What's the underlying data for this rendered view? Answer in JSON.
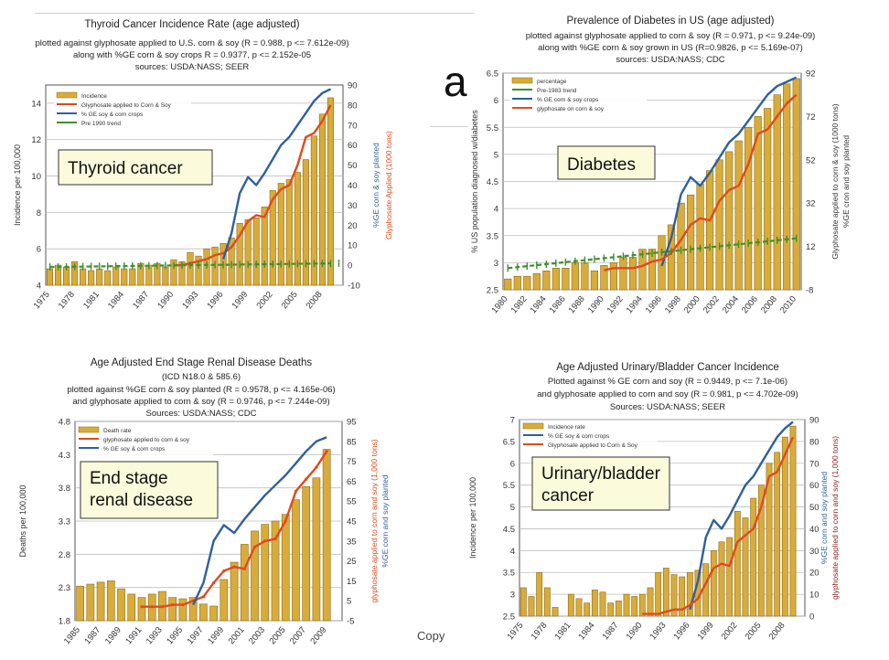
{
  "slide": {
    "letter": "a",
    "copy_text": "Copy",
    "colors": {
      "bar": "#d9ac3a",
      "bar_stroke": "#8a6a14",
      "glyphosate": "#e04a1c",
      "ge": "#2f5f9e",
      "trend": "#3f8f2f",
      "label_bg": "#fbfbdb",
      "label_border": "#333333"
    }
  },
  "chart_data": [
    {
      "id": "thyroid",
      "type": "bar",
      "title": "Thyroid Cancer Incidence Rate (age adjusted)",
      "subtitles": [
        "plotted against glyphosate applied to U.S. corn & soy (R = 0.988, p <= 7.612e-09)",
        "along with %GE corn & soy crops R = 0.9377, p <= 2.152e-05",
        "sources: USDA:NASS; SEER"
      ],
      "overlay_label": "Thyroid cancer",
      "ylabel": "Incidence per 100,000",
      "y2label_lines": [
        "%GE corn & soy planted",
        "Glyphosate Applied (1000 tons)"
      ],
      "y2colors": [
        "#2f5f9e",
        "#e04a1c"
      ],
      "ylim": [
        4,
        15
      ],
      "yticks": [
        "4",
        "6",
        "8",
        "10",
        "12",
        "14"
      ],
      "y2lim": [
        -10,
        90
      ],
      "y2ticks": [
        "-10",
        "0",
        "10",
        "20",
        "30",
        "40",
        "50",
        "60",
        "70",
        "80",
        "90"
      ],
      "xlim": [
        1975,
        2010
      ],
      "xticks": [
        "1975",
        "1978",
        "1981",
        "1984",
        "1987",
        "1990",
        "1993",
        "1996",
        "1999",
        "2002",
        "2005",
        "2008"
      ],
      "legend": [
        "Incidence",
        "Glyphosate applied to Corn & Soy",
        "% GE soy & corn crops",
        "Pre 1990 trend"
      ],
      "bars": {
        "x": [
          1975,
          1976,
          1977,
          1978,
          1979,
          1980,
          1981,
          1982,
          1983,
          1984,
          1985,
          1986,
          1987,
          1988,
          1989,
          1990,
          1991,
          1992,
          1993,
          1994,
          1995,
          1996,
          1997,
          1998,
          1999,
          2000,
          2001,
          2002,
          2003,
          2004,
          2005,
          2006,
          2007,
          2008,
          2009
        ],
        "values": [
          4.9,
          5.1,
          5.0,
          5.3,
          4.9,
          4.8,
          4.9,
          4.8,
          5.0,
          4.9,
          4.9,
          5.2,
          5.1,
          5.2,
          5.0,
          5.4,
          5.3,
          5.8,
          5.6,
          6.0,
          6.1,
          6.3,
          6.6,
          7.4,
          7.6,
          7.7,
          8.3,
          9.2,
          9.6,
          9.8,
          10.2,
          10.9,
          12.2,
          13.4,
          14.3
        ]
      },
      "series": [
        {
          "name": "Glyphosate applied to Corn & Soy",
          "axis": "right",
          "x": [
            1990,
            1991,
            1992,
            1993,
            1994,
            1995,
            1996,
            1997,
            1998,
            1999,
            2000,
            2001,
            2002,
            2003,
            2004,
            2005,
            2006,
            2007,
            2008,
            2009
          ],
          "values": [
            0,
            0,
            1,
            2,
            3,
            5,
            6,
            9,
            15,
            22,
            25,
            24,
            33,
            38,
            40,
            50,
            64,
            66,
            72,
            80
          ]
        },
        {
          "name": "% GE soy & corn crops",
          "axis": "right",
          "x": [
            1996,
            1997,
            1998,
            1999,
            2000,
            2001,
            2002,
            2003,
            2004,
            2005,
            2006,
            2007,
            2008,
            2009
          ],
          "values": [
            3,
            16,
            36,
            44,
            40,
            46,
            53,
            60,
            64,
            70,
            76,
            82,
            86,
            88
          ]
        },
        {
          "name": "Pre 1990 trend",
          "axis": "left",
          "x": [
            1975,
            2009
          ],
          "values": [
            5.0,
            5.2
          ]
        }
      ]
    },
    {
      "id": "diabetes",
      "type": "bar",
      "title": "Prevalence of Diabetes in US (age adjusted)",
      "subtitles": [
        "plotted against glyphosate applied to corn & soy (R = 0.971, p <= 9.24e-09)",
        "along with %GE corn & soy grown in US (R=0.9826, p <= 5.169e-07)",
        "sources: USDA:NASS; CDC"
      ],
      "overlay_label": "Diabetes",
      "ylabel": "% US population diagnosed w/diabetes",
      "y2label_lines": [
        "Glyphosate applied to corn & soy (1000 tons)",
        "%GE cron and soy planted"
      ],
      "y2colors": [
        "#333333",
        "#333333"
      ],
      "ylim": [
        2.5,
        6.5
      ],
      "yticks": [
        "2.5",
        "3",
        "3.5",
        "4",
        "4.5",
        "5",
        "5.5",
        "6",
        "6.5"
      ],
      "y2lim": [
        -8,
        92
      ],
      "y2ticks": [
        "-8",
        "12",
        "32",
        "52",
        "72",
        "92"
      ],
      "xlim": [
        1980,
        2010
      ],
      "xticks": [
        "1980",
        "1982",
        "1984",
        "1986",
        "1988",
        "1990",
        "1992",
        "1994",
        "1996",
        "1998",
        "2000",
        "2002",
        "2004",
        "2006",
        "2008",
        "2010"
      ],
      "legend": [
        "percentage",
        "Pre-1983 trend",
        "% GE corn & soy crops",
        "glyphosate on corn & soy"
      ],
      "bars": {
        "x": [
          1980,
          1981,
          1982,
          1983,
          1984,
          1985,
          1986,
          1987,
          1988,
          1989,
          1990,
          1991,
          1992,
          1993,
          1994,
          1995,
          1996,
          1997,
          1998,
          1999,
          2000,
          2001,
          2002,
          2003,
          2004,
          2005,
          2006,
          2007,
          2008,
          2009,
          2010
        ],
        "values": [
          2.7,
          2.75,
          2.75,
          2.8,
          2.85,
          2.9,
          2.9,
          3.0,
          3.0,
          2.85,
          2.95,
          3.0,
          3.1,
          3.1,
          3.25,
          3.25,
          3.5,
          3.7,
          4.1,
          4.25,
          4.45,
          4.7,
          4.9,
          5.05,
          5.25,
          5.5,
          5.7,
          5.85,
          6.1,
          6.3,
          6.4
        ]
      },
      "series": [
        {
          "name": "% GE corn & soy crops",
          "axis": "right",
          "x": [
            1996,
            1997,
            1998,
            1999,
            2000,
            2001,
            2002,
            2003,
            2004,
            2005,
            2006,
            2007,
            2008,
            2009,
            2010
          ],
          "values": [
            3,
            16,
            36,
            44,
            40,
            46,
            53,
            60,
            64,
            70,
            76,
            82,
            86,
            88,
            90
          ]
        },
        {
          "name": "glyphosate on corn & soy",
          "axis": "right",
          "x": [
            1990,
            1991,
            1992,
            1993,
            1994,
            1995,
            1996,
            1997,
            1998,
            1999,
            2000,
            2001,
            2002,
            2003,
            2004,
            2005,
            2006,
            2007,
            2008,
            2009,
            2010
          ],
          "values": [
            1,
            2,
            2,
            2,
            3,
            5,
            6,
            9,
            15,
            22,
            25,
            24,
            33,
            38,
            40,
            50,
            64,
            66,
            72,
            78,
            82
          ]
        },
        {
          "name": "Pre-1983 trend",
          "axis": "left",
          "x": [
            1980,
            2010
          ],
          "values": [
            2.9,
            3.45
          ]
        }
      ]
    },
    {
      "id": "renal",
      "type": "bar",
      "title": "Age Adjusted End Stage Renal Disease Deaths",
      "subtitles": [
        "(ICD N18.0 & 585.6)",
        "plotted against %GE corn & soy planted (R = 0.9578, p <= 4.165e-06)",
        "and glyphosate applied to corn & soy (R = 0.9746, p <= 7.244e-09)",
        "Sources: USDA:NASS; CDC"
      ],
      "overlay_label": "End stage\nrenal disease",
      "ylabel": "Deaths per 100,000",
      "y2label_lines": [
        "glyphosate applied to corn and soy (1,000 tons)",
        "%GE corn and soy planted"
      ],
      "y2colors": [
        "#e04a1c",
        "#2f5f9e"
      ],
      "ylim": [
        1.8,
        4.8
      ],
      "yticks": [
        "1.8",
        "2.3",
        "2.8",
        "3.3",
        "3.8",
        "4.3",
        "4.8"
      ],
      "y2lim": [
        -5,
        95
      ],
      "y2ticks": [
        "-5",
        "5",
        "15",
        "25",
        "35",
        "45",
        "55",
        "65",
        "75",
        "85",
        "95"
      ],
      "xlim": [
        1985,
        2010
      ],
      "xticks": [
        "1985",
        "1987",
        "1989",
        "1991",
        "1993",
        "1995",
        "1997",
        "1999",
        "2001",
        "2003",
        "2005",
        "2007",
        "2009"
      ],
      "legend": [
        "Death rate",
        "glyphosate applied to corn & soy",
        "% GE soy & corn crops"
      ],
      "bars": {
        "x": [
          1985,
          1986,
          1987,
          1988,
          1989,
          1990,
          1991,
          1992,
          1993,
          1994,
          1995,
          1996,
          1997,
          1998,
          1999,
          2000,
          2001,
          2002,
          2003,
          2004,
          2005,
          2006,
          2007,
          2008,
          2009
        ],
        "values": [
          2.32,
          2.35,
          2.38,
          2.4,
          2.28,
          2.2,
          2.15,
          2.2,
          2.24,
          2.15,
          2.13,
          2.15,
          2.05,
          2.02,
          2.42,
          2.68,
          2.95,
          3.15,
          3.25,
          3.3,
          3.4,
          3.62,
          3.82,
          3.95,
          4.38
        ]
      },
      "series": [
        {
          "name": "glyphosate applied to corn & soy",
          "axis": "right",
          "x": [
            1991,
            1992,
            1993,
            1994,
            1995,
            1996,
            1997,
            1998,
            1999,
            2000,
            2001,
            2002,
            2003,
            2004,
            2005,
            2006,
            2007,
            2008,
            2009
          ],
          "values": [
            2,
            2,
            2,
            3,
            3,
            5,
            7,
            14,
            20,
            22,
            21,
            32,
            35,
            36,
            45,
            60,
            66,
            72,
            80
          ]
        },
        {
          "name": "% GE soy & corn crops",
          "axis": "right",
          "x": [
            1996,
            1997,
            1998,
            1999,
            2000,
            2001,
            2002,
            2003,
            2004,
            2005,
            2006,
            2007,
            2008,
            2009
          ],
          "values": [
            3,
            14,
            35,
            43,
            39,
            46,
            52,
            58,
            63,
            68,
            74,
            80,
            85,
            87
          ]
        }
      ]
    },
    {
      "id": "bladder",
      "type": "bar",
      "title": "Age Adjusted Urinary/Bladder Cancer Incidence",
      "subtitles": [
        "Plotted against % GE corn and soy (R = 0.9449, p <= 7.1e-06)",
        "and glyphosate applied to corn and soy (R = 0.981, p <= 4.702e-09)",
        "Sources: USDA:NASS; SEER"
      ],
      "overlay_label": "Urinary/bladder\ncancer",
      "ylabel": "Incidence per 100,000",
      "y2label_lines": [
        "%GE corn and soy planted",
        "glyphosate applied to corn and soy (1,000 tons)"
      ],
      "y2colors": [
        "#2f5f9e",
        "#8a1a1a"
      ],
      "ylim": [
        2.5,
        7
      ],
      "yticks": [
        "2.5",
        "3",
        "3.5",
        "4",
        "4.5",
        "5",
        "5.5",
        "6",
        "6.5",
        "7"
      ],
      "y2lim": [
        0,
        90
      ],
      "y2ticks": [
        "0",
        "10",
        "20",
        "30",
        "40",
        "50",
        "60",
        "70",
        "80",
        "90"
      ],
      "xlim": [
        1975,
        2010
      ],
      "xticks": [
        "1975",
        "1978",
        "1981",
        "1984",
        "1987",
        "1990",
        "1993",
        "1996",
        "1999",
        "2002",
        "2005",
        "2008"
      ],
      "legend": [
        "Incidence rate",
        "% GE soy & corn crops",
        "Glyphosate applied to Corn & Soy"
      ],
      "bars": {
        "x": [
          1975,
          1976,
          1977,
          1978,
          1979,
          1981,
          1982,
          1983,
          1984,
          1985,
          1986,
          1987,
          1988,
          1989,
          1990,
          1991,
          1992,
          1993,
          1994,
          1995,
          1996,
          1997,
          1998,
          1999,
          2000,
          2001,
          2002,
          2003,
          2004,
          2005,
          2006,
          2007,
          2008,
          2009
        ],
        "values": [
          3.15,
          2.95,
          3.5,
          3.15,
          2.7,
          3.0,
          2.9,
          2.8,
          3.1,
          3.05,
          2.8,
          2.85,
          3.0,
          2.95,
          3.0,
          3.15,
          3.5,
          3.6,
          3.45,
          3.4,
          3.5,
          3.55,
          3.7,
          4.0,
          4.2,
          4.3,
          4.9,
          4.75,
          5.2,
          5.5,
          6.0,
          6.25,
          6.6,
          6.85
        ]
      },
      "series": [
        {
          "name": "% GE soy & corn crops",
          "axis": "right",
          "x": [
            1996,
            1997,
            1998,
            1999,
            2000,
            2001,
            2002,
            2003,
            2004,
            2005,
            2006,
            2007,
            2008,
            2009
          ],
          "values": [
            3,
            16,
            36,
            44,
            40,
            46,
            53,
            60,
            64,
            70,
            76,
            82,
            86,
            89
          ]
        },
        {
          "name": "Glyphosate applied to Corn & Soy",
          "axis": "right",
          "x": [
            1990,
            1991,
            1992,
            1993,
            1994,
            1995,
            1996,
            1997,
            1998,
            1999,
            2000,
            2001,
            2002,
            2003,
            2004,
            2005,
            2006,
            2007,
            2008,
            2009
          ],
          "values": [
            1,
            1,
            1,
            2,
            3,
            3,
            5,
            8,
            15,
            22,
            24,
            23,
            34,
            37,
            40,
            50,
            64,
            66,
            74,
            82
          ]
        }
      ]
    }
  ]
}
